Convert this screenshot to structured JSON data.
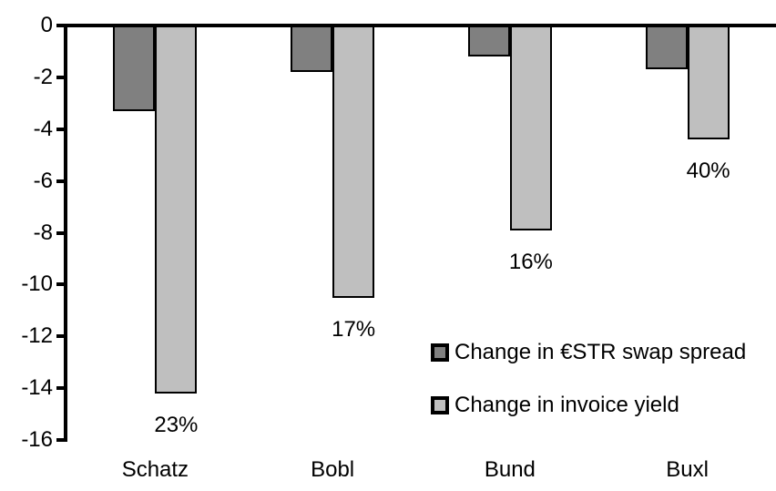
{
  "chart_data": {
    "type": "bar",
    "title": "",
    "xlabel": "",
    "ylabel": "",
    "categories": [
      "Schatz",
      "Bobl",
      "Bund",
      "Buxl"
    ],
    "series": [
      {
        "name": "Change in €STR swap spread",
        "color": "#808080",
        "values": [
          -3.3,
          -1.8,
          -1.2,
          -1.7
        ]
      },
      {
        "name": "Change in invoice yield",
        "color": "#bfbfbf",
        "values": [
          -14.2,
          -10.5,
          -7.9,
          -4.4
        ],
        "point_labels": [
          "23%",
          "17%",
          "16%",
          "40%"
        ]
      }
    ],
    "ylim": [
      -16,
      0
    ],
    "yticks": [
      "0",
      "-2",
      "-4",
      "-6",
      "-8",
      "-10",
      "-12",
      "-14",
      "-16"
    ],
    "ytick_values": [
      0,
      -2,
      -4,
      -6,
      -8,
      -10,
      -12,
      -14,
      -16
    ],
    "grid": false,
    "legend_position": "inside-middle-right",
    "bar_outline_color": "#000000",
    "background_color": "#ffffff",
    "text_color": "#000000"
  }
}
